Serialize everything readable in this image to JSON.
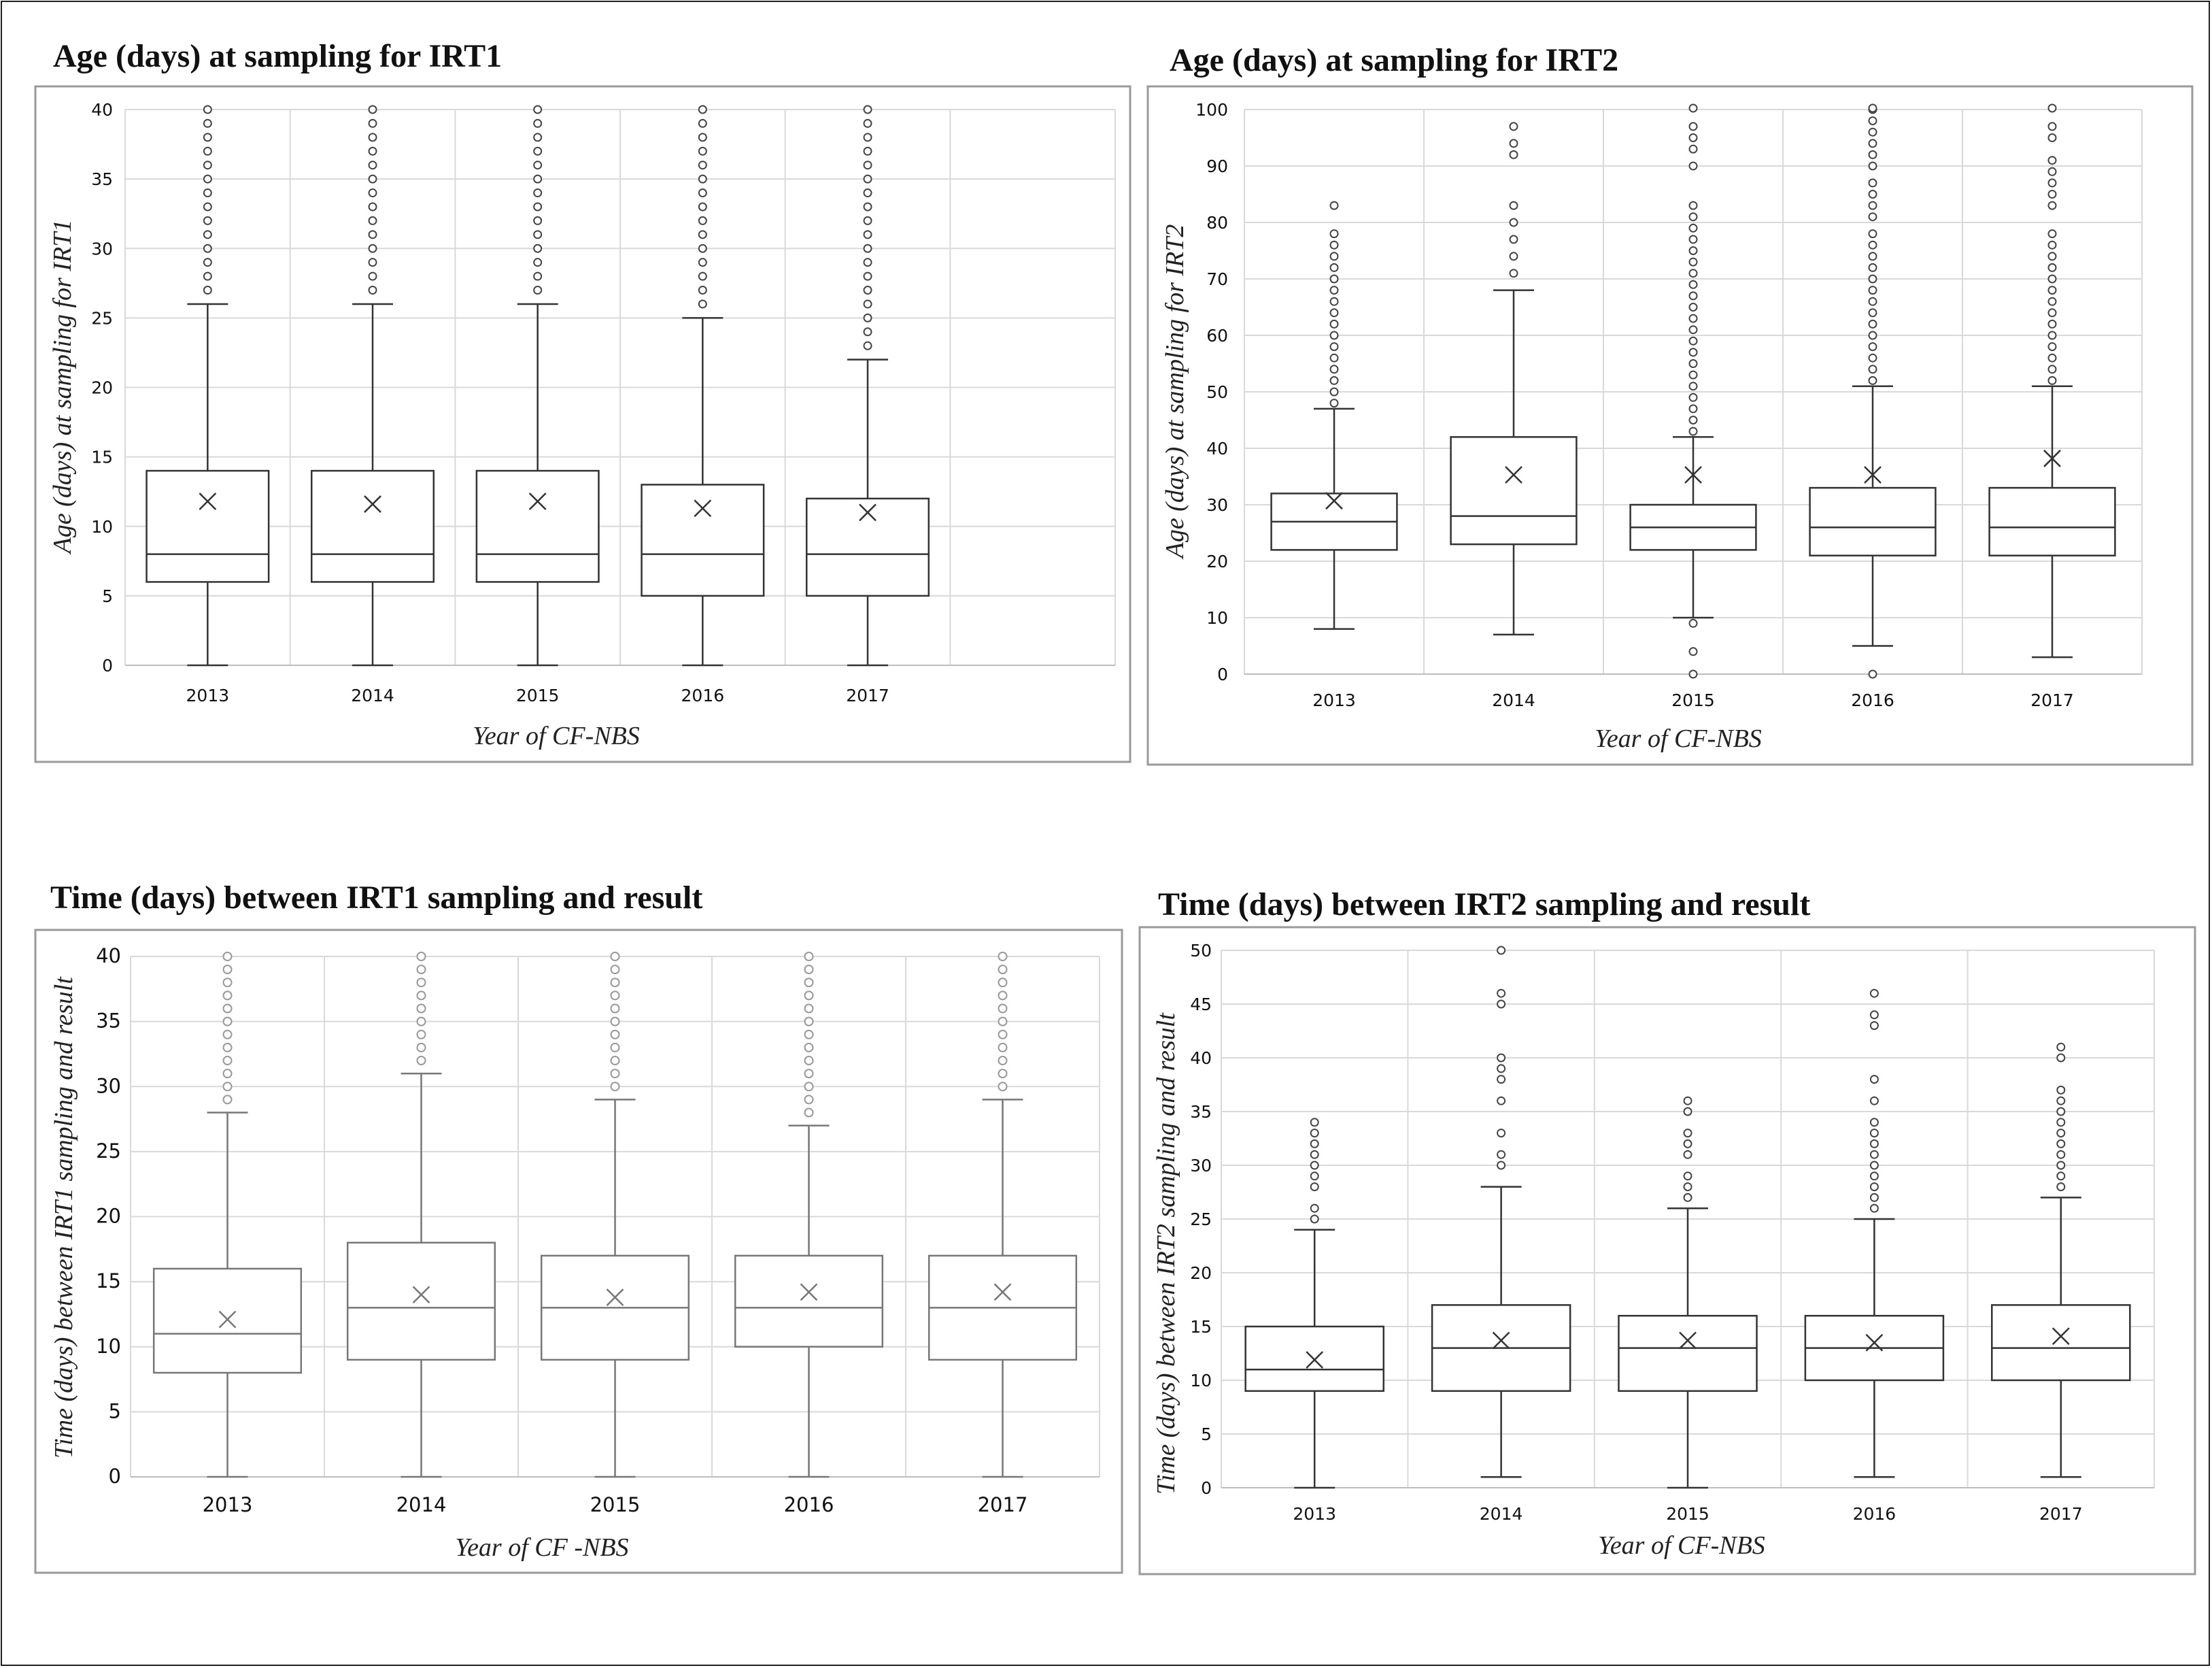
{
  "chart_data": [
    {
      "type": "boxplot",
      "title": "Age (days) at sampling for IRT1",
      "xlabel": "Year of CF-NBS",
      "ylabel": "Age (days) at sampling for IRT1",
      "ylim": [
        0,
        40
      ],
      "yticks": [
        0,
        5,
        10,
        15,
        20,
        25,
        30,
        35,
        40
      ],
      "categories": [
        "2013",
        "2014",
        "2015",
        "2016",
        "2017"
      ],
      "extra_empty_columns": 1,
      "boxes": [
        {
          "min": 0,
          "q1": 6,
          "median": 8,
          "q3": 14,
          "max": 26,
          "mean": 11.8,
          "outliers": [
            27,
            28,
            29,
            30,
            31,
            32,
            33,
            34,
            35,
            36,
            37,
            38,
            39,
            40
          ]
        },
        {
          "min": 0,
          "q1": 6,
          "median": 8,
          "q3": 14,
          "max": 26,
          "mean": 11.6,
          "outliers": [
            27,
            28,
            29,
            30,
            31,
            32,
            33,
            34,
            35,
            36,
            37,
            38,
            39,
            40
          ]
        },
        {
          "min": 0,
          "q1": 6,
          "median": 8,
          "q3": 14,
          "max": 26,
          "mean": 11.8,
          "outliers": [
            27,
            28,
            29,
            30,
            31,
            32,
            33,
            34,
            35,
            36,
            37,
            38,
            39,
            40
          ]
        },
        {
          "min": 0,
          "q1": 5,
          "median": 8,
          "q3": 13,
          "max": 25,
          "mean": 11.3,
          "outliers": [
            26,
            27,
            28,
            29,
            30,
            31,
            32,
            33,
            34,
            35,
            36,
            37,
            38,
            39,
            40
          ]
        },
        {
          "min": 0,
          "q1": 5,
          "median": 8,
          "q3": 12,
          "max": 22,
          "mean": 11.0,
          "outliers": [
            23,
            24,
            25,
            26,
            27,
            28,
            29,
            30,
            31,
            32,
            33,
            34,
            35,
            36,
            37,
            38,
            39,
            40
          ]
        }
      ]
    },
    {
      "type": "boxplot",
      "title": "Age (days) at sampling for IRT2",
      "xlabel": "Year of CF-NBS",
      "ylabel": "Age (days) at sampling for IRT2",
      "ylim": [
        0,
        100
      ],
      "yticks": [
        0,
        10,
        20,
        30,
        40,
        50,
        60,
        70,
        80,
        90,
        100
      ],
      "categories": [
        "2013",
        "2014",
        "2015",
        "2016",
        "2017"
      ],
      "extra_empty_columns": 0,
      "boxes": [
        {
          "min": 8,
          "q1": 22,
          "median": 27,
          "q3": 32,
          "max": 47,
          "mean": 30.7,
          "outliers": [
            48,
            50,
            52,
            54,
            56,
            58,
            60,
            62,
            64,
            66,
            68,
            70,
            72,
            74,
            76,
            78,
            83
          ]
        },
        {
          "min": 7,
          "q1": 23,
          "median": 28,
          "q3": 42,
          "max": 68,
          "mean": 35.3,
          "outliers": [
            71,
            74,
            77,
            80,
            83,
            92,
            94,
            97
          ]
        },
        {
          "min": 10,
          "q1": 22,
          "median": 26,
          "q3": 30,
          "max": 42,
          "mean": 35.3,
          "outliers": [
            0,
            4,
            9,
            43,
            45,
            47,
            49,
            51,
            53,
            55,
            57,
            59,
            61,
            63,
            65,
            67,
            69,
            71,
            73,
            75,
            77,
            79,
            81,
            83,
            90,
            93,
            95,
            97,
            101
          ]
        },
        {
          "min": 5,
          "q1": 21,
          "median": 26,
          "q3": 33,
          "max": 51,
          "mean": 35.3,
          "outliers": [
            0,
            52,
            54,
            56,
            58,
            60,
            62,
            64,
            66,
            68,
            70,
            72,
            74,
            76,
            78,
            81,
            83,
            85,
            87,
            90,
            92,
            94,
            96,
            98,
            100,
            101
          ]
        },
        {
          "min": 3,
          "q1": 21,
          "median": 26,
          "q3": 33,
          "max": 51,
          "mean": 38.2,
          "outliers": [
            52,
            54,
            56,
            58,
            60,
            62,
            64,
            66,
            68,
            70,
            72,
            74,
            76,
            78,
            83,
            85,
            87,
            89,
            91,
            95,
            97,
            101
          ]
        }
      ]
    },
    {
      "type": "boxplot",
      "title": "Time (days) between IRT1 sampling and result",
      "xlabel": "Year of CF -NBS",
      "ylabel": "Time (days) between IRT1 sampling and result",
      "ylim": [
        0,
        40
      ],
      "yticks": [
        0,
        5,
        10,
        15,
        20,
        25,
        30,
        35,
        40
      ],
      "categories": [
        "2013",
        "2014",
        "2015",
        "2016",
        "2017"
      ],
      "extra_empty_columns": 0,
      "boxes": [
        {
          "min": 0,
          "q1": 8,
          "median": 11,
          "q3": 16,
          "max": 28,
          "mean": 12.1,
          "outliers": [
            29,
            30,
            31,
            32,
            33,
            34,
            35,
            36,
            37,
            38,
            39,
            40
          ]
        },
        {
          "min": 0,
          "q1": 9,
          "median": 13,
          "q3": 18,
          "max": 31,
          "mean": 14.0,
          "outliers": [
            32,
            33,
            34,
            35,
            36,
            37,
            38,
            39,
            40
          ]
        },
        {
          "min": 0,
          "q1": 9,
          "median": 13,
          "q3": 17,
          "max": 29,
          "mean": 13.8,
          "outliers": [
            30,
            31,
            32,
            33,
            34,
            35,
            36,
            37,
            38,
            39,
            40
          ]
        },
        {
          "min": 0,
          "q1": 10,
          "median": 13,
          "q3": 17,
          "max": 27,
          "mean": 14.2,
          "outliers": [
            28,
            29,
            30,
            31,
            32,
            33,
            34,
            35,
            36,
            37,
            38,
            39,
            40
          ]
        },
        {
          "min": 0,
          "q1": 9,
          "median": 13,
          "q3": 17,
          "max": 29,
          "mean": 14.2,
          "outliers": [
            30,
            31,
            32,
            33,
            34,
            35,
            36,
            37,
            38,
            39,
            40
          ]
        }
      ]
    },
    {
      "type": "boxplot",
      "title": "Time (days) between IRT2 sampling and result",
      "xlabel": "Year of CF-NBS",
      "ylabel": "Time (days) between IRT2 sampling and result",
      "ylim": [
        0,
        50
      ],
      "yticks": [
        0,
        5,
        10,
        15,
        20,
        25,
        30,
        35,
        40,
        45,
        50
      ],
      "categories": [
        "2013",
        "2014",
        "2015",
        "2016",
        "2017"
      ],
      "extra_empty_columns": 0,
      "boxes": [
        {
          "min": 0,
          "q1": 9,
          "median": 11,
          "q3": 15,
          "max": 24,
          "mean": 11.9,
          "outliers": [
            25,
            26,
            28,
            29,
            30,
            31,
            32,
            33,
            34
          ]
        },
        {
          "min": 1,
          "q1": 9,
          "median": 13,
          "q3": 17,
          "max": 28,
          "mean": 13.7,
          "outliers": [
            30,
            31,
            33,
            36,
            38,
            39,
            40,
            45,
            46,
            50
          ]
        },
        {
          "min": 0,
          "q1": 9,
          "median": 13,
          "q3": 16,
          "max": 26,
          "mean": 13.7,
          "outliers": [
            27,
            28,
            29,
            31,
            32,
            33,
            35,
            36
          ]
        },
        {
          "min": 1,
          "q1": 10,
          "median": 13,
          "q3": 16,
          "max": 25,
          "mean": 13.5,
          "outliers": [
            26,
            27,
            28,
            29,
            30,
            31,
            32,
            33,
            34,
            36,
            38,
            43,
            44,
            46
          ]
        },
        {
          "min": 1,
          "q1": 10,
          "median": 13,
          "q3": 17,
          "max": 27,
          "mean": 14.1,
          "outliers": [
            28,
            29,
            30,
            31,
            32,
            33,
            34,
            35,
            36,
            37,
            40,
            41
          ]
        }
      ]
    }
  ]
}
